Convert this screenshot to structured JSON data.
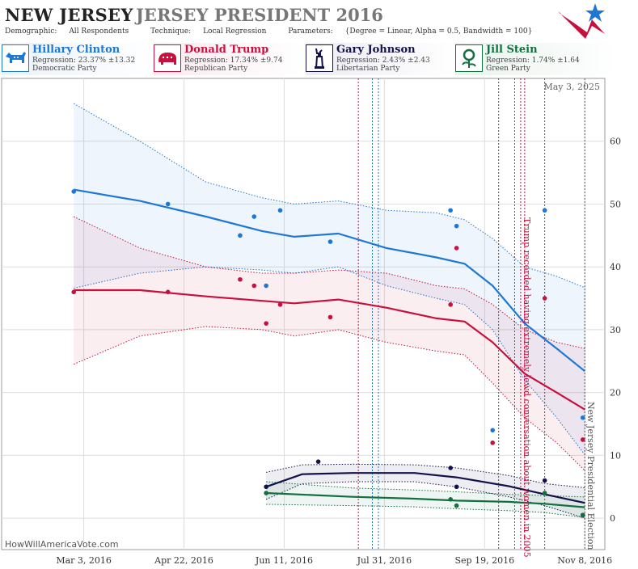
{
  "header": {
    "state": "NEW JERSEY",
    "race": "JERSEY PRESIDENT 2016",
    "demographic_label": "Demographic:",
    "demographic_value": "All Respondents",
    "technique_label": "Technique:",
    "technique_value": "Local Regression",
    "parameters_label": "Parameters:",
    "parameters_value": "{Degree = Linear, Alpha = 0.5, Bandwidth = 100}"
  },
  "candidates": [
    {
      "name": "Hillary Clinton",
      "regression": "Regression: 23.37% ±13.32",
      "party": "Democratic Party",
      "color": "#1f77d4",
      "bg": "#eaf2fb",
      "icon": "donkey-icon"
    },
    {
      "name": "Donald Trump",
      "regression": "Regression: 17.34% ±9.74",
      "party": "Republican Party",
      "color": "#c8103e",
      "bg": "#fbe9ee",
      "icon": "elephant-icon"
    },
    {
      "name": "Gary Johnson",
      "regression": "Regression: 2.43% ±2.43",
      "party": "Libertarian Party",
      "color": "#14124a",
      "bg": "#ecebf4",
      "icon": "liberty-statue-icon"
    },
    {
      "name": "Jill Stein",
      "regression": "Regression: 1.74% ±1.64",
      "party": "Green Party",
      "color": "#107040",
      "bg": "#e8f3ec",
      "icon": "flower-icon"
    }
  ],
  "watermark": "HowWillAmericaVote.com",
  "chart_data": {
    "type": "line",
    "date_label": "May 3, 2025",
    "x_tick_labels": [
      "Mar 3, 2016",
      "Apr 22, 2016",
      "Jun 11, 2016",
      "Jul 31, 2016",
      "Sep 19, 2016",
      "Nov 8, 2016"
    ],
    "x_ticks": [
      "2016-03-03",
      "2016-04-22",
      "2016-06-11",
      "2016-07-31",
      "2016-09-19",
      "2016-11-08"
    ],
    "xlim": [
      "2016-01-22",
      "2016-11-18"
    ],
    "ylim": [
      -5,
      70
    ],
    "y_ticks": [
      0,
      10,
      20,
      30,
      40,
      50,
      60
    ],
    "grid": true,
    "events": [
      {
        "date": "2016-07-18",
        "color": "#c8103e",
        "text": ""
      },
      {
        "date": "2016-07-25",
        "color": "#1f77d4",
        "text": ""
      },
      {
        "date": "2016-07-28",
        "color": "#1f77d4",
        "text": ""
      },
      {
        "date": "2016-09-26",
        "color": "#555555",
        "text": ""
      },
      {
        "date": "2016-10-04",
        "color": "#555555",
        "text": ""
      },
      {
        "date": "2016-10-09",
        "color": "#c8103e",
        "text": ""
      },
      {
        "date": "2016-10-07",
        "color": "#c8103e",
        "text": "Trump recorded having extremely lewd conversation about women in 2005"
      },
      {
        "date": "2016-10-19",
        "color": "#555555",
        "text": ""
      },
      {
        "date": "2016-11-08",
        "color": "#555555",
        "text": "New Jersey Presidential Election"
      }
    ],
    "series": [
      {
        "name": "Hillary Clinton",
        "color": "#1f77d4",
        "points": [
          [
            "2016-02-27",
            52
          ],
          [
            "2016-04-14",
            50
          ],
          [
            "2016-05-20",
            45
          ],
          [
            "2016-05-27",
            48
          ],
          [
            "2016-06-02",
            37
          ],
          [
            "2016-06-09",
            49
          ],
          [
            "2016-07-04",
            44
          ],
          [
            "2016-09-02",
            49
          ],
          [
            "2016-09-05",
            46.5
          ],
          [
            "2016-09-23",
            14
          ],
          [
            "2016-10-19",
            49
          ],
          [
            "2016-11-07",
            16
          ]
        ],
        "fit": [
          [
            "2016-02-27",
            52.3
          ],
          [
            "2016-03-31",
            50.5
          ],
          [
            "2016-05-03",
            48
          ],
          [
            "2016-05-31",
            45.7
          ],
          [
            "2016-06-16",
            44.8
          ],
          [
            "2016-07-08",
            45.3
          ],
          [
            "2016-08-01",
            43
          ],
          [
            "2016-08-26",
            41.5
          ],
          [
            "2016-09-09",
            40.5
          ],
          [
            "2016-09-23",
            37
          ],
          [
            "2016-10-09",
            31
          ],
          [
            "2016-10-25",
            27
          ],
          [
            "2016-11-08",
            23.4
          ]
        ],
        "upper": [
          [
            "2016-02-27",
            66
          ],
          [
            "2016-03-31",
            60
          ],
          [
            "2016-05-03",
            53.5
          ],
          [
            "2016-05-31",
            51
          ],
          [
            "2016-06-16",
            50
          ],
          [
            "2016-07-08",
            50.5
          ],
          [
            "2016-08-01",
            49
          ],
          [
            "2016-08-26",
            48.6
          ],
          [
            "2016-09-09",
            47.5
          ],
          [
            "2016-09-23",
            44.5
          ],
          [
            "2016-10-09",
            40
          ],
          [
            "2016-10-25",
            38.5
          ],
          [
            "2016-11-08",
            36.7
          ]
        ],
        "lower": [
          [
            "2016-02-27",
            36.6
          ],
          [
            "2016-03-31",
            39
          ],
          [
            "2016-05-03",
            40
          ],
          [
            "2016-05-31",
            39.5
          ],
          [
            "2016-06-16",
            39
          ],
          [
            "2016-07-08",
            40
          ],
          [
            "2016-08-01",
            37
          ],
          [
            "2016-08-26",
            35
          ],
          [
            "2016-09-09",
            34
          ],
          [
            "2016-09-23",
            30
          ],
          [
            "2016-10-09",
            22
          ],
          [
            "2016-10-25",
            16
          ],
          [
            "2016-11-08",
            10.1
          ]
        ]
      },
      {
        "name": "Donald Trump",
        "color": "#c8103e",
        "points": [
          [
            "2016-02-27",
            36
          ],
          [
            "2016-04-14",
            36
          ],
          [
            "2016-05-20",
            38
          ],
          [
            "2016-05-27",
            37
          ],
          [
            "2016-06-02",
            31
          ],
          [
            "2016-06-09",
            34
          ],
          [
            "2016-07-04",
            32
          ],
          [
            "2016-09-02",
            34
          ],
          [
            "2016-09-05",
            43
          ],
          [
            "2016-09-23",
            12
          ],
          [
            "2016-10-19",
            35
          ],
          [
            "2016-11-07",
            12.5
          ]
        ],
        "fit": [
          [
            "2016-02-27",
            36.3
          ],
          [
            "2016-03-31",
            36.3
          ],
          [
            "2016-05-03",
            35.3
          ],
          [
            "2016-05-31",
            34.6
          ],
          [
            "2016-06-16",
            34.2
          ],
          [
            "2016-07-08",
            34.8
          ],
          [
            "2016-08-01",
            33.5
          ],
          [
            "2016-08-26",
            31.8
          ],
          [
            "2016-09-09",
            31.3
          ],
          [
            "2016-09-23",
            28
          ],
          [
            "2016-10-09",
            23
          ],
          [
            "2016-10-25",
            20
          ],
          [
            "2016-11-08",
            17.3
          ]
        ],
        "upper": [
          [
            "2016-02-27",
            48
          ],
          [
            "2016-03-31",
            43
          ],
          [
            "2016-05-03",
            40
          ],
          [
            "2016-05-31",
            39
          ],
          [
            "2016-06-16",
            39
          ],
          [
            "2016-07-08",
            39.5
          ],
          [
            "2016-08-01",
            39
          ],
          [
            "2016-08-26",
            37
          ],
          [
            "2016-09-09",
            36.5
          ],
          [
            "2016-09-23",
            34
          ],
          [
            "2016-10-09",
            30
          ],
          [
            "2016-10-25",
            28
          ],
          [
            "2016-11-08",
            27
          ]
        ],
        "lower": [
          [
            "2016-02-27",
            24.5
          ],
          [
            "2016-03-31",
            29
          ],
          [
            "2016-05-03",
            30.5
          ],
          [
            "2016-05-31",
            30
          ],
          [
            "2016-06-16",
            29
          ],
          [
            "2016-07-08",
            30
          ],
          [
            "2016-08-01",
            28
          ],
          [
            "2016-08-26",
            26.6
          ],
          [
            "2016-09-09",
            26
          ],
          [
            "2016-09-23",
            21.5
          ],
          [
            "2016-10-09",
            16
          ],
          [
            "2016-10-25",
            12
          ],
          [
            "2016-11-08",
            7.6
          ]
        ]
      },
      {
        "name": "Gary Johnson",
        "color": "#14124a",
        "points": [
          [
            "2016-06-02",
            5
          ],
          [
            "2016-06-28",
            9
          ],
          [
            "2016-09-02",
            8
          ],
          [
            "2016-09-05",
            5
          ],
          [
            "2016-10-19",
            6
          ],
          [
            "2016-11-07",
            0.5
          ]
        ],
        "fit": [
          [
            "2016-06-02",
            5
          ],
          [
            "2016-06-20",
            7
          ],
          [
            "2016-07-15",
            7.2
          ],
          [
            "2016-08-15",
            7.2
          ],
          [
            "2016-09-05",
            6.5
          ],
          [
            "2016-10-01",
            5.1
          ],
          [
            "2016-10-19",
            3.8
          ],
          [
            "2016-11-08",
            2.43
          ]
        ],
        "upper": [
          [
            "2016-06-02",
            7.3
          ],
          [
            "2016-06-20",
            8.5
          ],
          [
            "2016-07-15",
            8.6
          ],
          [
            "2016-08-15",
            8.5
          ],
          [
            "2016-09-05",
            8
          ],
          [
            "2016-10-01",
            6.8
          ],
          [
            "2016-10-19",
            5.5
          ],
          [
            "2016-11-08",
            4.86
          ]
        ],
        "lower": [
          [
            "2016-06-02",
            3
          ],
          [
            "2016-06-20",
            5.5
          ],
          [
            "2016-07-15",
            5.8
          ],
          [
            "2016-08-15",
            5.8
          ],
          [
            "2016-09-05",
            5
          ],
          [
            "2016-10-01",
            3.4
          ],
          [
            "2016-10-19",
            2
          ],
          [
            "2016-11-08",
            0
          ]
        ]
      },
      {
        "name": "Jill Stein",
        "color": "#107040",
        "points": [
          [
            "2016-06-02",
            4
          ],
          [
            "2016-09-02",
            3
          ],
          [
            "2016-09-05",
            2
          ],
          [
            "2016-10-19",
            4
          ],
          [
            "2016-11-07",
            0.5
          ]
        ],
        "fit": [
          [
            "2016-06-02",
            4
          ],
          [
            "2016-07-15",
            3.4
          ],
          [
            "2016-08-15",
            3.1
          ],
          [
            "2016-09-05",
            2.8
          ],
          [
            "2016-10-01",
            2.6
          ],
          [
            "2016-10-19",
            2.3
          ],
          [
            "2016-11-08",
            1.74
          ]
        ],
        "upper": [
          [
            "2016-06-02",
            5.8
          ],
          [
            "2016-07-15",
            4.8
          ],
          [
            "2016-08-15",
            4.5
          ],
          [
            "2016-09-05",
            4.2
          ],
          [
            "2016-10-01",
            3.8
          ],
          [
            "2016-10-19",
            3.6
          ],
          [
            "2016-11-08",
            3.38
          ]
        ],
        "lower": [
          [
            "2016-06-02",
            2.2
          ],
          [
            "2016-07-15",
            2
          ],
          [
            "2016-08-15",
            1.8
          ],
          [
            "2016-09-05",
            1.5
          ],
          [
            "2016-10-01",
            1.2
          ],
          [
            "2016-10-19",
            0.9
          ],
          [
            "2016-11-08",
            0.1
          ]
        ]
      }
    ]
  }
}
